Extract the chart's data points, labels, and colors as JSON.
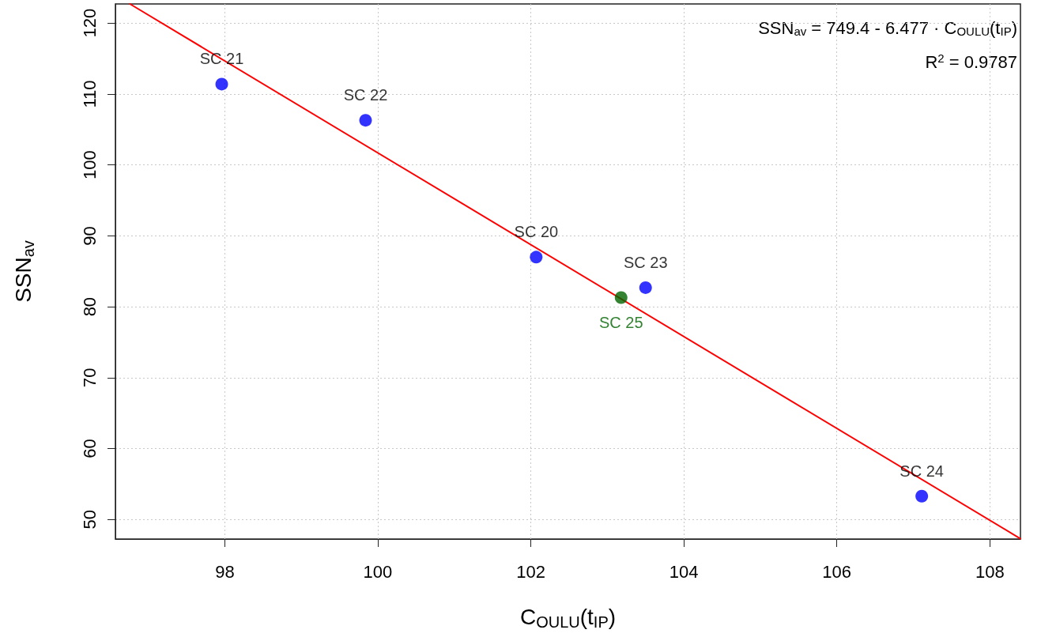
{
  "chart_data": {
    "type": "scatter",
    "xlabel": "C$_{OULU}$(t$_{IP}$)",
    "ylabel": "SSN$_{av}$",
    "xlim": [
      96.57,
      108.4
    ],
    "xticks": [
      98,
      100,
      102,
      104,
      106,
      108
    ],
    "ylim": [
      47.25,
      122.7
    ],
    "yticks": [
      50,
      60,
      70,
      80,
      90,
      100,
      110,
      120
    ],
    "grid": true,
    "legend": false,
    "marker": "circle",
    "annotations": [
      "SSN$_{av}$ = 749.4 - 6.477 · C$_{OULU}$(t$_{IP}$)",
      "R$^{2}$ = 0.9787"
    ],
    "series": [
      {
        "type": "line",
        "color": "#ff0000",
        "line_style": "solid",
        "marker": "none",
        "x": [
          96.76,
          108.4
        ],
        "values": [
          122.7,
          47.3
        ]
      },
      {
        "name": "SC 21",
        "color": "#0000ff",
        "x": [
          97.96
        ],
        "values": [
          111.4
        ]
      },
      {
        "name": "SC 22",
        "color": "#0000ff",
        "x": [
          99.84
        ],
        "values": [
          106.3
        ]
      },
      {
        "name": "SC 20",
        "color": "#0000ff",
        "x": [
          102.07
        ],
        "values": [
          87.0
        ]
      },
      {
        "name": "SC 23",
        "color": "#0000ff",
        "x": [
          103.5
        ],
        "values": [
          82.7
        ]
      },
      {
        "name": "SC 24",
        "color": "#0000ff",
        "x": [
          107.11
        ],
        "values": [
          53.3
        ]
      },
      {
        "name": "SC 25",
        "color": "#006400",
        "x": [
          103.18
        ],
        "values": [
          81.3
        ]
      }
    ]
  }
}
